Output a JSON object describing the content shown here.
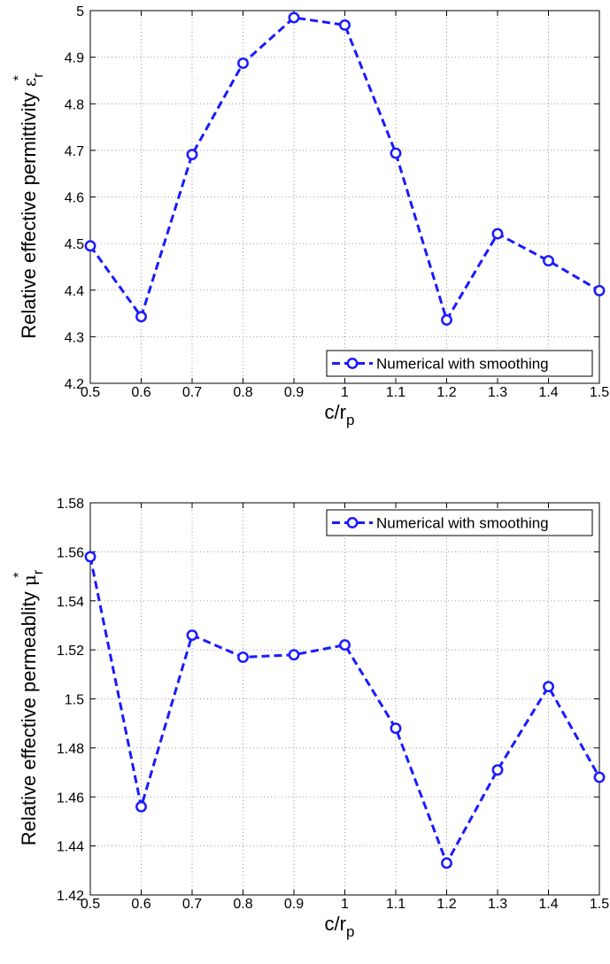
{
  "chart_data": [
    {
      "type": "line",
      "xlabel": "c/r",
      "xlabel_sub": "p",
      "ylabel": "Relative effective permittivity",
      "ylabel_symbol": "ε",
      "ylabel_symbol_sub": "r",
      "ylabel_symbol_sup": "*",
      "xlim": [
        0.5,
        1.5
      ],
      "ylim": [
        4.2,
        5.0
      ],
      "xticks": [
        0.5,
        0.6,
        0.7,
        0.8,
        0.9,
        1,
        1.1,
        1.2,
        1.3,
        1.4,
        1.5
      ],
      "xtick_labels": [
        "0.5",
        "0.6",
        "0.7",
        "0.8",
        "0.9",
        "1",
        "1.1",
        "1.2",
        "1.3",
        "1.4",
        "1.5"
      ],
      "yticks": [
        4.2,
        4.3,
        4.4,
        4.5,
        4.6,
        4.7,
        4.8,
        4.9,
        5.0
      ],
      "ytick_labels": [
        "4.2",
        "4.3",
        "4.4",
        "4.5",
        "4.6",
        "4.7",
        "4.8",
        "4.9",
        "5"
      ],
      "grid": true,
      "legend_position": "bottom-right",
      "series": [
        {
          "name": "Numerical with smoothing",
          "color": "#1a1aff",
          "style": "dashed line with circle markers",
          "x": [
            0.5,
            0.6,
            0.7,
            0.8,
            0.9,
            1.0,
            1.1,
            1.2,
            1.3,
            1.4,
            1.5
          ],
          "y": [
            4.495,
            4.343,
            4.691,
            4.887,
            4.985,
            4.969,
            4.694,
            4.336,
            4.521,
            4.463,
            4.399
          ]
        }
      ]
    },
    {
      "type": "line",
      "xlabel": "c/r",
      "xlabel_sub": "p",
      "ylabel": "Relative effective permeablity",
      "ylabel_symbol": "μ",
      "ylabel_symbol_sub": "r",
      "ylabel_symbol_sup": "*",
      "xlim": [
        0.5,
        1.5
      ],
      "ylim": [
        1.42,
        1.58
      ],
      "xticks": [
        0.5,
        0.6,
        0.7,
        0.8,
        0.9,
        1,
        1.1,
        1.2,
        1.3,
        1.4,
        1.5
      ],
      "xtick_labels": [
        "0.5",
        "0.6",
        "0.7",
        "0.8",
        "0.9",
        "1",
        "1.1",
        "1.2",
        "1.3",
        "1.4",
        "1.5"
      ],
      "yticks": [
        1.42,
        1.44,
        1.46,
        1.48,
        1.5,
        1.52,
        1.54,
        1.56,
        1.58
      ],
      "ytick_labels": [
        "1.42",
        "1.44",
        "1.46",
        "1.48",
        "1.5",
        "1.52",
        "1.54",
        "1.56",
        "1.58"
      ],
      "grid": true,
      "legend_position": "top-right",
      "series": [
        {
          "name": "Numerical with smoothing",
          "color": "#1a1aff",
          "style": "dashed line with circle markers",
          "x": [
            0.5,
            0.6,
            0.7,
            0.8,
            0.9,
            1.0,
            1.1,
            1.2,
            1.3,
            1.4,
            1.5
          ],
          "y": [
            1.558,
            1.456,
            1.526,
            1.517,
            1.518,
            1.522,
            1.488,
            1.433,
            1.471,
            1.505,
            1.468
          ]
        }
      ]
    }
  ]
}
